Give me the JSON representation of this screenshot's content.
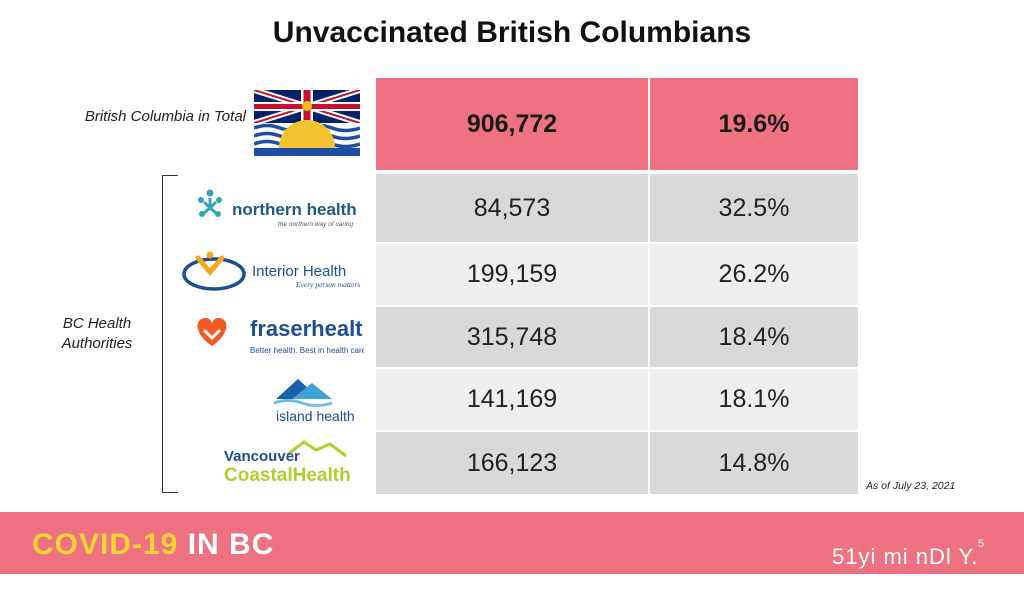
{
  "title": "Unvaccinated British Columbians",
  "bc_label": "British Columbia in Total",
  "authorities_label": [
    "BC Health",
    "Authorities"
  ],
  "as_of": "As of July 23, 2021",
  "footer": {
    "brand_part1": "COVID-19",
    "brand_part2": "IN BC",
    "page_number": "5",
    "watermark": "51yi mi nDl Y. com"
  },
  "colors": {
    "highlight": "#ee7281",
    "dark_row": "#d9d9d9",
    "light_row": "#eeeeee",
    "brand_yellow": "#f6d436"
  },
  "logos": {
    "northern": {
      "name": "northern health",
      "tagline": "the northern way of caring"
    },
    "interior": {
      "name": "Interior Health",
      "tagline": "Every person matters"
    },
    "fraser": {
      "name": "fraserhealth",
      "tagline": "Better health. Best in health care."
    },
    "island": {
      "name": "island health"
    },
    "vch": {
      "line1": "Vancouver",
      "line2": "CoastalHealth"
    }
  },
  "chart_data": {
    "type": "table",
    "title": "Unvaccinated British Columbians",
    "total": {
      "label": "British Columbia in Total",
      "count": "906,772",
      "percent": "19.6%"
    },
    "rows": [
      {
        "authority": "northern health",
        "count": "84,573",
        "percent": "32.5%"
      },
      {
        "authority": "Interior Health",
        "count": "199,159",
        "percent": "26.2%"
      },
      {
        "authority": "fraserhealth",
        "count": "315,748",
        "percent": "18.4%"
      },
      {
        "authority": "island health",
        "count": "141,169",
        "percent": "18.1%"
      },
      {
        "authority": "Vancouver CoastalHealth",
        "count": "166,123",
        "percent": "14.8%"
      }
    ]
  }
}
